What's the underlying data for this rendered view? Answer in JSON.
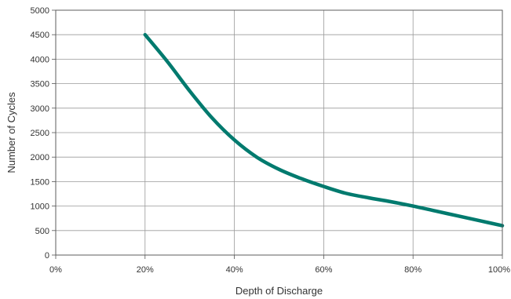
{
  "chart_data": {
    "type": "line",
    "title": "",
    "xlabel": "Depth of Discharge",
    "ylabel": "Number of Cycles",
    "x_tick_labels": [
      "0%",
      "20%",
      "40%",
      "60%",
      "80%",
      "100%"
    ],
    "y_tick_labels": [
      "0",
      "500",
      "1000",
      "1500",
      "2000",
      "2500",
      "3000",
      "3500",
      "4000",
      "4500",
      "5000"
    ],
    "xlim": [
      0,
      100
    ],
    "ylim": [
      0,
      5000
    ],
    "grid": true,
    "legend": "none",
    "series": [
      {
        "color": "#007a6e",
        "x": [
          20,
          25,
          30,
          35,
          40,
          45,
          50,
          55,
          60,
          65,
          70,
          75,
          80,
          85,
          90,
          95,
          100
        ],
        "y": [
          4500,
          3950,
          3350,
          2800,
          2350,
          2000,
          1750,
          1560,
          1400,
          1260,
          1170,
          1090,
          1000,
          900,
          800,
          700,
          600
        ]
      }
    ],
    "colors": {
      "grid": "#9a9a9a",
      "axis": "#555555",
      "line": "#007a6e"
    }
  }
}
